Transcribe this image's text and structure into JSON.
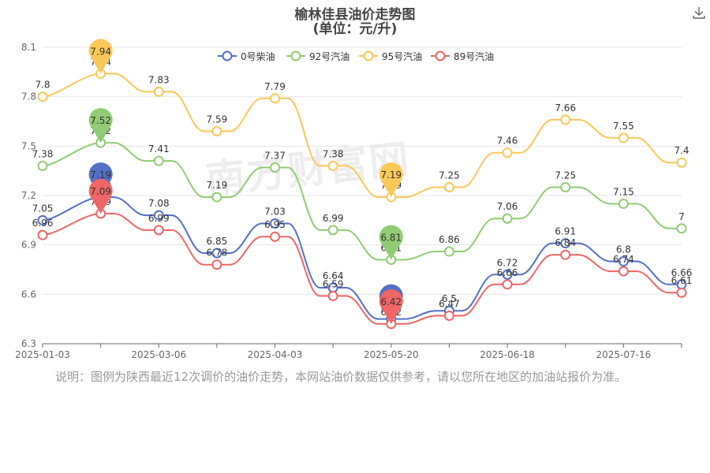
{
  "header": {
    "title": "榆林佳县油价走势图",
    "subtitle": "(单位：元/升)"
  },
  "note": "说明：图例为陕西最近12次调价的油价走势，本网站油价数据仅供参考，请以您所在地区的加油站报价为准。",
  "watermark": "南方财富网",
  "icons": {
    "download": "download-icon"
  },
  "chart_data": {
    "type": "line",
    "x_tick_labels": [
      "2025-01-03",
      "2025-03-06",
      "2025-04-03",
      "2025-05-20",
      "2025-06-18",
      "2025-07-16"
    ],
    "x_tick_positions": [
      0,
      2,
      4,
      6,
      8,
      10
    ],
    "y_ticks": [
      6.3,
      6.6,
      6.9,
      7.2,
      7.5,
      7.8,
      8.1
    ],
    "ylim": [
      6.3,
      8.1
    ],
    "grid": "horizontal",
    "legend_position": "top-center",
    "series": [
      {
        "name": "0号柴油",
        "color": "#5470c6",
        "values": [
          7.05,
          7.19,
          7.08,
          6.85,
          7.03,
          6.64,
          6.45,
          6.5,
          6.72,
          6.91,
          6.8,
          6.66
        ],
        "max_index": 1,
        "min_index": 6
      },
      {
        "name": "92号汽油",
        "color": "#91cc75",
        "values": [
          7.38,
          7.52,
          7.41,
          7.19,
          7.37,
          6.99,
          6.81,
          6.86,
          7.06,
          7.25,
          7.15,
          7.0
        ],
        "max_index": 1,
        "min_index": 6
      },
      {
        "name": "95号汽油",
        "color": "#fac858",
        "values": [
          7.8,
          7.94,
          7.83,
          7.59,
          7.79,
          7.38,
          7.19,
          7.25,
          7.46,
          7.66,
          7.55,
          7.4
        ],
        "max_index": 1,
        "min_index": 6
      },
      {
        "name": "89号汽油",
        "color": "#ee6666",
        "values": [
          6.96,
          7.09,
          6.99,
          6.78,
          6.95,
          6.59,
          6.42,
          6.47,
          6.66,
          6.84,
          6.74,
          6.61
        ],
        "max_index": 1,
        "min_index": 6
      }
    ]
  }
}
